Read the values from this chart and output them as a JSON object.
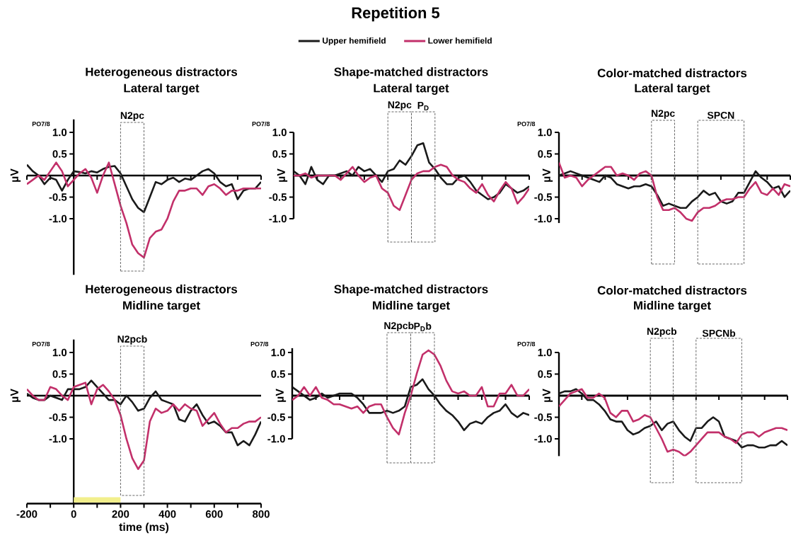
{
  "chart_data": [
    {
      "type": "other",
      "title": "Repetition 5"
    },
    {
      "type": "line",
      "title": "Heterogeneous distractors",
      "subtitle": "Lateral target",
      "ylabel": "µV",
      "annotations": [
        "PO7/8",
        "N2pc"
      ],
      "legend": "top",
      "tick_labels": "y",
      "xlim": [
        -200,
        800
      ],
      "ylim": [
        -2.3,
        1.3
      ],
      "xticks": [
        {
          "value": -200,
          "label": null
        },
        {
          "value": -100,
          "label": null
        },
        {
          "value": 0,
          "label": null
        },
        {
          "value": 100,
          "label": null
        },
        {
          "value": 200,
          "label": null
        },
        {
          "value": 300,
          "label": null
        },
        {
          "value": 400,
          "label": null
        },
        {
          "value": 500,
          "label": null
        },
        {
          "value": 600,
          "label": null
        },
        {
          "value": 700,
          "label": null
        },
        {
          "value": 800,
          "label": null
        }
      ],
      "yticks": [
        {
          "value": 1.0,
          "label": "1.0"
        },
        {
          "value": 0.5,
          "label": "0.5"
        },
        {
          "value": -0.5,
          "label": "-0.5"
        },
        {
          "value": -1.0,
          "label": "-1.0"
        }
      ],
      "x": [
        -200,
        -175,
        -150,
        -125,
        -100,
        -75,
        -50,
        -25,
        0,
        25,
        50,
        75,
        100,
        125,
        150,
        175,
        200,
        225,
        250,
        275,
        300,
        325,
        350,
        375,
        400,
        425,
        450,
        475,
        500,
        525,
        550,
        575,
        600,
        625,
        650,
        675,
        700,
        725,
        750,
        775,
        800
      ],
      "series": [
        {
          "name": "Upper hemifield",
          "color": "#1a1a1a",
          "values": [
            0.25,
            0.1,
            0.0,
            -0.2,
            -0.05,
            -0.1,
            -0.35,
            -0.1,
            0.1,
            0.08,
            0.05,
            0.1,
            0.07,
            0.15,
            0.2,
            0.22,
            0.05,
            -0.25,
            -0.55,
            -0.75,
            -0.85,
            -0.5,
            -0.15,
            -0.2,
            -0.1,
            -0.05,
            -0.15,
            -0.07,
            -0.1,
            0.0,
            0.1,
            0.15,
            0.05,
            -0.15,
            -0.25,
            -0.2,
            -0.55,
            -0.35,
            -0.3,
            -0.3,
            -0.15
          ]
        },
        {
          "name": "Lower hemifield",
          "color": "#c2306a",
          "values": [
            -0.2,
            -0.1,
            0.0,
            -0.1,
            0.1,
            0.3,
            0.1,
            -0.25,
            -0.1,
            0.05,
            0.15,
            -0.05,
            -0.4,
            0.0,
            0.3,
            -0.2,
            -0.7,
            -1.1,
            -1.6,
            -1.8,
            -1.9,
            -1.45,
            -1.3,
            -1.25,
            -1.0,
            -0.6,
            -0.35,
            -0.35,
            -0.3,
            -0.3,
            -0.45,
            -0.25,
            -0.2,
            -0.3,
            -0.45,
            -0.35,
            -0.35,
            -0.3,
            -0.3,
            -0.3,
            -0.3
          ]
        }
      ]
    },
    {
      "type": "line",
      "title": "Shape-matched distractors",
      "subtitle": "Lateral target",
      "ylabel": "µV",
      "annotations": [
        "PO7/8",
        "N2pc",
        "P$_{D}$"
      ],
      "tick_labels": "y",
      "ylim": [
        -1.0,
        1.0
      ],
      "yticks": [
        {
          "value": 1.0,
          "label": "1.0"
        },
        {
          "value": 0.5,
          "label": "0.5"
        },
        {
          "value": -0.5,
          "label": "-0.5"
        },
        {
          "value": -1.0,
          "label": "-1.0"
        }
      ],
      "categories": [
        null,
        null,
        null,
        null,
        null,
        null,
        null,
        null,
        null,
        null,
        null,
        null,
        null,
        null,
        null,
        null,
        null,
        null,
        null,
        null,
        null,
        null,
        null,
        null,
        null,
        null,
        null,
        null,
        null,
        null,
        null,
        null,
        null,
        null,
        null,
        null,
        null,
        null,
        null,
        null,
        null
      ],
      "series": [
        {
          "color": "#1a1a1a",
          "values": [
            0.1,
            0.0,
            -0.2,
            0.2,
            -0.1,
            -0.2,
            0.0,
            0.0,
            0.05,
            0.1,
            0.0,
            0.2,
            0.1,
            0.15,
            0.0,
            -0.15,
            0.1,
            0.15,
            0.35,
            0.25,
            0.45,
            0.7,
            0.75,
            0.3,
            0.15,
            -0.05,
            -0.2,
            -0.2,
            -0.05,
            0.0,
            -0.15,
            -0.35,
            -0.45,
            -0.55,
            -0.5,
            -0.4,
            -0.2,
            -0.3,
            -0.4,
            -0.35,
            -0.25
          ]
        },
        {
          "color": "#c2306a",
          "values": [
            0.0,
            0.0,
            0.05,
            -0.05,
            0.0,
            0.0,
            0.0,
            0.0,
            -0.1,
            0.05,
            0.2,
            0.0,
            -0.15,
            -0.05,
            0.0,
            -0.3,
            -0.4,
            -0.7,
            -0.8,
            -0.45,
            -0.1,
            0.05,
            0.1,
            0.1,
            0.2,
            0.25,
            0.2,
            0.0,
            -0.1,
            -0.15,
            -0.3,
            -0.4,
            -0.2,
            -0.45,
            -0.6,
            -0.35,
            -0.15,
            -0.3,
            -0.65,
            -0.5,
            -0.3
          ]
        }
      ]
    },
    {
      "type": "line",
      "title": "Color-matched distractors",
      "subtitle": "Lateral target",
      "ylabel": "µV",
      "annotations": [
        "PO7/8",
        "N2pc",
        "SPCN"
      ],
      "tick_labels": "y",
      "ylim": [
        -1.1,
        1.0
      ],
      "yticks": [
        {
          "value": 1.0,
          "label": "1.0"
        },
        {
          "value": 0.5,
          "label": "0.5"
        },
        {
          "value": -0.5,
          "label": "-0.5"
        },
        {
          "value": -1.0,
          "label": "-1.0"
        }
      ],
      "categories": [
        null,
        null,
        null,
        null,
        null,
        null,
        null,
        null,
        null,
        null,
        null,
        null,
        null,
        null,
        null,
        null,
        null,
        null,
        null,
        null,
        null,
        null,
        null,
        null,
        null,
        null,
        null,
        null,
        null,
        null,
        null,
        null,
        null,
        null,
        null,
        null,
        null,
        null,
        null,
        null,
        null
      ],
      "series": [
        {
          "color": "#1a1a1a",
          "values": [
            0.0,
            0.05,
            0.1,
            0.05,
            0.0,
            -0.05,
            -0.1,
            -0.15,
            0.0,
            -0.05,
            -0.2,
            -0.25,
            -0.3,
            -0.25,
            -0.25,
            -0.2,
            -0.25,
            -0.45,
            -0.7,
            -0.65,
            -0.7,
            -0.75,
            -0.75,
            -0.6,
            -0.5,
            -0.35,
            -0.45,
            -0.4,
            -0.6,
            -0.65,
            -0.6,
            -0.4,
            -0.4,
            -0.15,
            0.1,
            -0.05,
            -0.15,
            -0.3,
            -0.25,
            -0.5,
            -0.35
          ]
        },
        {
          "color": "#c2306a",
          "values": [
            0.3,
            -0.05,
            0.0,
            -0.05,
            -0.25,
            -0.1,
            0.0,
            0.1,
            0.2,
            0.2,
            0.0,
            0.05,
            0.0,
            -0.1,
            0.05,
            0.1,
            0.0,
            -0.5,
            -0.8,
            -0.8,
            -0.75,
            -0.85,
            -1.0,
            -1.05,
            -0.85,
            -0.75,
            -0.75,
            -0.7,
            -0.6,
            -0.55,
            -0.55,
            -0.5,
            -0.5,
            -0.3,
            -0.15,
            -0.4,
            -0.45,
            -0.3,
            -0.45,
            -0.2,
            -0.25
          ]
        }
      ]
    },
    {
      "type": "line",
      "title": "Heterogeneous distractors",
      "subtitle": "Midline target",
      "ylabel": "µV",
      "xlabel": "time (ms)",
      "annotations": [
        "PO7/8",
        "N2pcb"
      ],
      "xlim": [
        -200,
        800
      ],
      "ylim": [
        -2.5,
        1.3
      ],
      "xticks": [
        {
          "value": -200,
          "label": "-200"
        },
        {
          "value": -100,
          "label": null
        },
        {
          "value": 0,
          "label": "0"
        },
        {
          "value": 100,
          "label": null
        },
        {
          "value": 200,
          "label": "200"
        },
        {
          "value": 300,
          "label": null
        },
        {
          "value": 400,
          "label": "400"
        },
        {
          "value": 500,
          "label": null
        },
        {
          "value": 600,
          "label": "600"
        },
        {
          "value": 700,
          "label": null
        },
        {
          "value": 800,
          "label": "800"
        }
      ],
      "yticks": [
        {
          "value": 1.0,
          "label": "1.0"
        },
        {
          "value": 0.5,
          "label": "0.5"
        },
        {
          "value": -0.5,
          "label": "-0.5"
        },
        {
          "value": -1.0,
          "label": "-1.0"
        }
      ],
      "ref_lines": [
        {
          "axis": "y",
          "value": 0
        }
      ],
      "x": [
        -200,
        -175,
        -150,
        -125,
        -100,
        -75,
        -50,
        -25,
        0,
        25,
        50,
        75,
        100,
        125,
        150,
        175,
        200,
        225,
        250,
        275,
        300,
        325,
        350,
        375,
        400,
        425,
        450,
        475,
        500,
        525,
        550,
        575,
        600,
        625,
        650,
        675,
        700,
        725,
        750,
        775,
        800
      ],
      "series": [
        {
          "color": "#1a1a1a",
          "values": [
            0.05,
            -0.05,
            -0.1,
            -0.1,
            0.0,
            -0.05,
            -0.1,
            0.15,
            0.15,
            0.15,
            0.2,
            0.35,
            0.2,
            0.05,
            -0.1,
            -0.1,
            -0.2,
            0.0,
            -0.15,
            -0.35,
            -0.3,
            -0.05,
            0.1,
            -0.1,
            -0.15,
            -0.2,
            -0.55,
            -0.6,
            -0.35,
            -0.2,
            -0.45,
            -0.65,
            -0.6,
            -0.7,
            -0.85,
            -0.85,
            -1.15,
            -1.05,
            -1.15,
            -0.9,
            -0.6
          ]
        },
        {
          "color": "#c2306a",
          "values": [
            0.15,
            0.0,
            -0.1,
            -0.1,
            0.2,
            0.15,
            0.0,
            -0.1,
            0.2,
            0.25,
            0.3,
            -0.2,
            0.15,
            0.25,
            0.1,
            -0.1,
            -0.45,
            -1.0,
            -1.45,
            -1.7,
            -1.5,
            -0.6,
            -0.3,
            -0.4,
            -0.35,
            -0.2,
            -0.35,
            -0.2,
            -0.3,
            -0.35,
            -0.7,
            -0.55,
            -0.4,
            -0.65,
            -0.85,
            -0.75,
            -0.75,
            -0.65,
            -0.6,
            -0.6,
            -0.5
          ]
        }
      ]
    },
    {
      "type": "line",
      "title": "Shape-matched distractors",
      "subtitle": "Midline target",
      "ylabel": "µV",
      "annotations": [
        "PO7/8",
        "N2pcb",
        "P$_{D}$b"
      ],
      "tick_labels": "y",
      "ylim": [
        -1.0,
        1.1
      ],
      "yticks": [
        {
          "value": 1.0,
          "label": "1.0"
        },
        {
          "value": 0.5,
          "label": "0.5"
        },
        {
          "value": -0.5,
          "label": "-0.5"
        },
        {
          "value": -1.0,
          "label": "-1.0"
        }
      ],
      "categories": [
        null,
        null,
        null,
        null,
        null,
        null,
        null,
        null,
        null,
        null,
        null,
        null,
        null,
        null,
        null,
        null,
        null,
        null,
        null,
        null,
        null,
        null,
        null,
        null,
        null,
        null,
        null,
        null,
        null,
        null,
        null,
        null,
        null,
        null,
        null,
        null,
        null,
        null,
        null,
        null,
        null
      ],
      "series": [
        {
          "color": "#1a1a1a",
          "values": [
            0.2,
            0.1,
            0.0,
            -0.1,
            -0.05,
            0.05,
            -0.05,
            0.0,
            0.05,
            0.05,
            0.05,
            -0.05,
            -0.2,
            -0.4,
            -0.4,
            -0.4,
            -0.35,
            -0.4,
            -0.35,
            -0.25,
            0.2,
            0.25,
            0.38,
            0.15,
            0.0,
            -0.2,
            -0.35,
            -0.45,
            -0.6,
            -0.8,
            -0.65,
            -0.6,
            -0.65,
            -0.5,
            -0.4,
            -0.35,
            -0.2,
            -0.4,
            -0.5,
            -0.4,
            -0.45
          ]
        },
        {
          "color": "#c2306a",
          "values": [
            -0.1,
            0.0,
            0.2,
            0.0,
            0.2,
            -0.05,
            -0.1,
            -0.2,
            -0.2,
            -0.25,
            -0.3,
            -0.25,
            -0.4,
            -0.25,
            -0.2,
            -0.2,
            -0.5,
            -0.75,
            -0.9,
            -0.4,
            0.0,
            0.5,
            0.95,
            1.05,
            0.95,
            0.7,
            0.35,
            0.1,
            0.05,
            0.1,
            0.0,
            0.0,
            0.2,
            -0.25,
            -0.25,
            0.05,
            0.05,
            0.25,
            0.0,
            0.0,
            0.15
          ]
        }
      ]
    },
    {
      "type": "line",
      "title": "Color-matched distractors",
      "subtitle": "Midline target",
      "ylabel": "µV",
      "annotations": [
        "PO7/8",
        "N2pcb",
        "SPCNb"
      ],
      "tick_labels": "y",
      "ylim": [
        -1.4,
        1.0
      ],
      "yticks": [
        {
          "value": 1.0,
          "label": "1.0"
        },
        {
          "value": 0.5,
          "label": "0.5"
        },
        {
          "value": -0.5,
          "label": "-0.5"
        },
        {
          "value": -1.0,
          "label": "-1.0"
        }
      ],
      "categories": [
        null,
        null,
        null,
        null,
        null,
        null,
        null,
        null,
        null,
        null,
        null,
        null,
        null,
        null,
        null,
        null,
        null,
        null,
        null,
        null,
        null,
        null,
        null,
        null,
        null,
        null,
        null,
        null,
        null,
        null,
        null,
        null,
        null,
        null,
        null,
        null,
        null,
        null,
        null,
        null,
        null
      ],
      "series": [
        {
          "color": "#1a1a1a",
          "values": [
            0.05,
            0.1,
            0.1,
            0.15,
            0.05,
            -0.1,
            -0.1,
            -0.2,
            -0.35,
            -0.55,
            -0.6,
            -0.6,
            -0.8,
            -0.9,
            -0.85,
            -0.75,
            -0.7,
            -0.6,
            -0.8,
            -0.65,
            -0.6,
            -0.8,
            -0.95,
            -1.05,
            -0.75,
            -0.75,
            -0.6,
            -0.5,
            -0.6,
            -0.95,
            -1.0,
            -1.05,
            -1.2,
            -1.15,
            -1.15,
            -1.2,
            -1.2,
            -1.15,
            -1.15,
            -1.05,
            -1.15
          ]
        },
        {
          "color": "#c2306a",
          "values": [
            -0.25,
            -0.1,
            0.05,
            0.1,
            0.15,
            -0.05,
            -0.05,
            0.05,
            -0.05,
            -0.4,
            -0.5,
            -0.35,
            -0.35,
            -0.6,
            -0.55,
            -0.45,
            -0.5,
            -0.75,
            -1.0,
            -1.3,
            -1.25,
            -1.3,
            -1.4,
            -1.3,
            -1.15,
            -1.0,
            -0.85,
            -0.85,
            -0.85,
            -0.95,
            -1.0,
            -1.1,
            -0.9,
            -0.85,
            -0.85,
            -0.95,
            -0.85,
            -0.8,
            -0.75,
            -0.75,
            -0.8
          ]
        }
      ]
    }
  ]
}
